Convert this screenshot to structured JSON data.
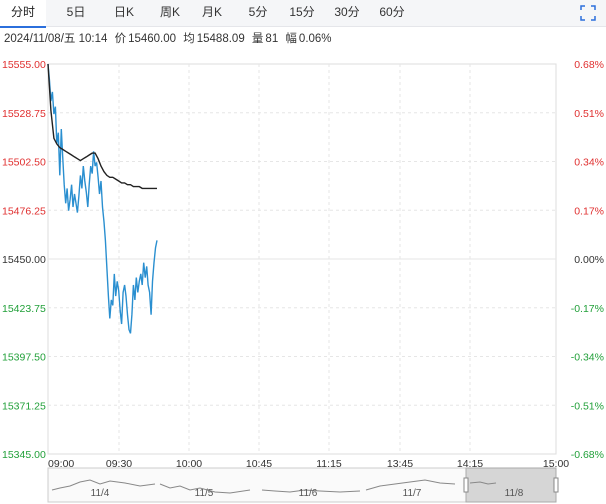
{
  "tabs": [
    {
      "label": "分时",
      "active": true
    },
    {
      "label": "5日",
      "active": false
    },
    {
      "label": "日K",
      "active": false
    },
    {
      "label": "周K",
      "active": false
    },
    {
      "label": "月K",
      "active": false
    },
    {
      "label": "5分",
      "active": false
    },
    {
      "label": "15分",
      "active": false
    },
    {
      "label": "30分",
      "active": false
    },
    {
      "label": "60分",
      "active": false
    }
  ],
  "info": {
    "datetime": "2024/11/08/五 10:14",
    "price_label": "价",
    "price": "15460.00",
    "avg_label": "均",
    "avg": "15488.09",
    "volume_label": "量",
    "volume": "81",
    "change_label": "幅",
    "change": "0.06%"
  },
  "colors": {
    "up": "#e03030",
    "down": "#22a03a",
    "neutral": "#333333",
    "price_line": "#2a8fd0",
    "avg_line": "#222222",
    "grid": "#e6e6e6",
    "accent": "#2b6fdc"
  },
  "icons": {
    "expand": "expand-corners-icon"
  },
  "chart_data": {
    "type": "line",
    "xlabel": "",
    "ylabel": "",
    "prev_close": 15450.0,
    "ylim": [
      15345.0,
      15555.0
    ],
    "y_ticks": [
      "15555.00",
      "15528.75",
      "15502.50",
      "15476.25",
      "15450.00",
      "15423.75",
      "15397.50",
      "15371.25",
      "15345.00"
    ],
    "pct_ticks": [
      "0.68%",
      "0.51%",
      "0.34%",
      "0.17%",
      "0.00%",
      "-0.17%",
      "-0.34%",
      "-0.51%",
      "-0.68%"
    ],
    "x_ticks": [
      "09:00",
      "09:30",
      "10:00",
      "10:45",
      "11:15",
      "13:45",
      "14:15",
      "15:00"
    ],
    "series": [
      {
        "name": "价",
        "x": [
          0,
          1,
          2,
          3,
          4,
          5,
          6,
          7,
          8,
          9,
          10,
          11,
          12,
          13,
          14,
          15,
          16,
          17,
          18,
          19,
          20,
          21,
          22,
          23,
          24,
          25,
          26,
          27,
          28,
          29,
          30,
          31,
          32,
          33,
          34,
          35,
          36,
          37,
          38,
          39,
          40,
          41,
          42,
          43,
          44,
          45,
          46,
          47,
          48,
          49,
          50,
          51,
          52,
          53,
          54,
          55,
          56,
          57,
          58,
          59,
          60,
          61,
          62,
          63,
          64,
          65,
          66,
          67,
          68,
          69,
          70,
          71,
          72,
          73,
          74
        ],
        "values": [
          15555,
          15546,
          15535,
          15540,
          15528,
          15532,
          15512,
          15518,
          15495,
          15520,
          15505,
          15490,
          15480,
          15488,
          15476,
          15482,
          15490,
          15478,
          15485,
          15480,
          15475,
          15484,
          15495,
          15488,
          15500,
          15492,
          15486,
          15478,
          15490,
          15500,
          15496,
          15508,
          15500,
          15502,
          15494,
          15485,
          15492,
          15478,
          15470,
          15460,
          15445,
          15430,
          15418,
          15428,
          15425,
          15442,
          15430,
          15438,
          15433,
          15422,
          15415,
          15432,
          15436,
          15430,
          15420,
          15412,
          15410,
          15420,
          15436,
          15428,
          15440,
          15432,
          15438,
          15442,
          15436,
          15448,
          15440,
          15446,
          15436,
          15432,
          15420,
          15438,
          15448,
          15456,
          15460
        ]
      },
      {
        "name": "均",
        "x": [
          0,
          2,
          4,
          6,
          8,
          10,
          12,
          14,
          16,
          18,
          20,
          22,
          24,
          26,
          28,
          30,
          32,
          34,
          36,
          38,
          40,
          42,
          44,
          46,
          48,
          50,
          52,
          54,
          56,
          58,
          60,
          62,
          64,
          66,
          68,
          70,
          72,
          74
        ],
        "values": [
          15555,
          15530,
          15515,
          15512,
          15510,
          15509,
          15508,
          15507,
          15506,
          15505,
          15504,
          15503,
          15504,
          15505,
          15506,
          15507,
          15507,
          15504,
          15500,
          15497,
          15495,
          15494,
          15494,
          15493,
          15492,
          15491,
          15491,
          15490,
          15490,
          15489,
          15489,
          15489,
          15488,
          15488,
          15488,
          15488,
          15488,
          15488
        ]
      }
    ],
    "total_minutes": 345,
    "navigator": {
      "date_labels": [
        "11/4",
        "11/5",
        "11/6",
        "11/7",
        "11/8"
      ]
    }
  }
}
